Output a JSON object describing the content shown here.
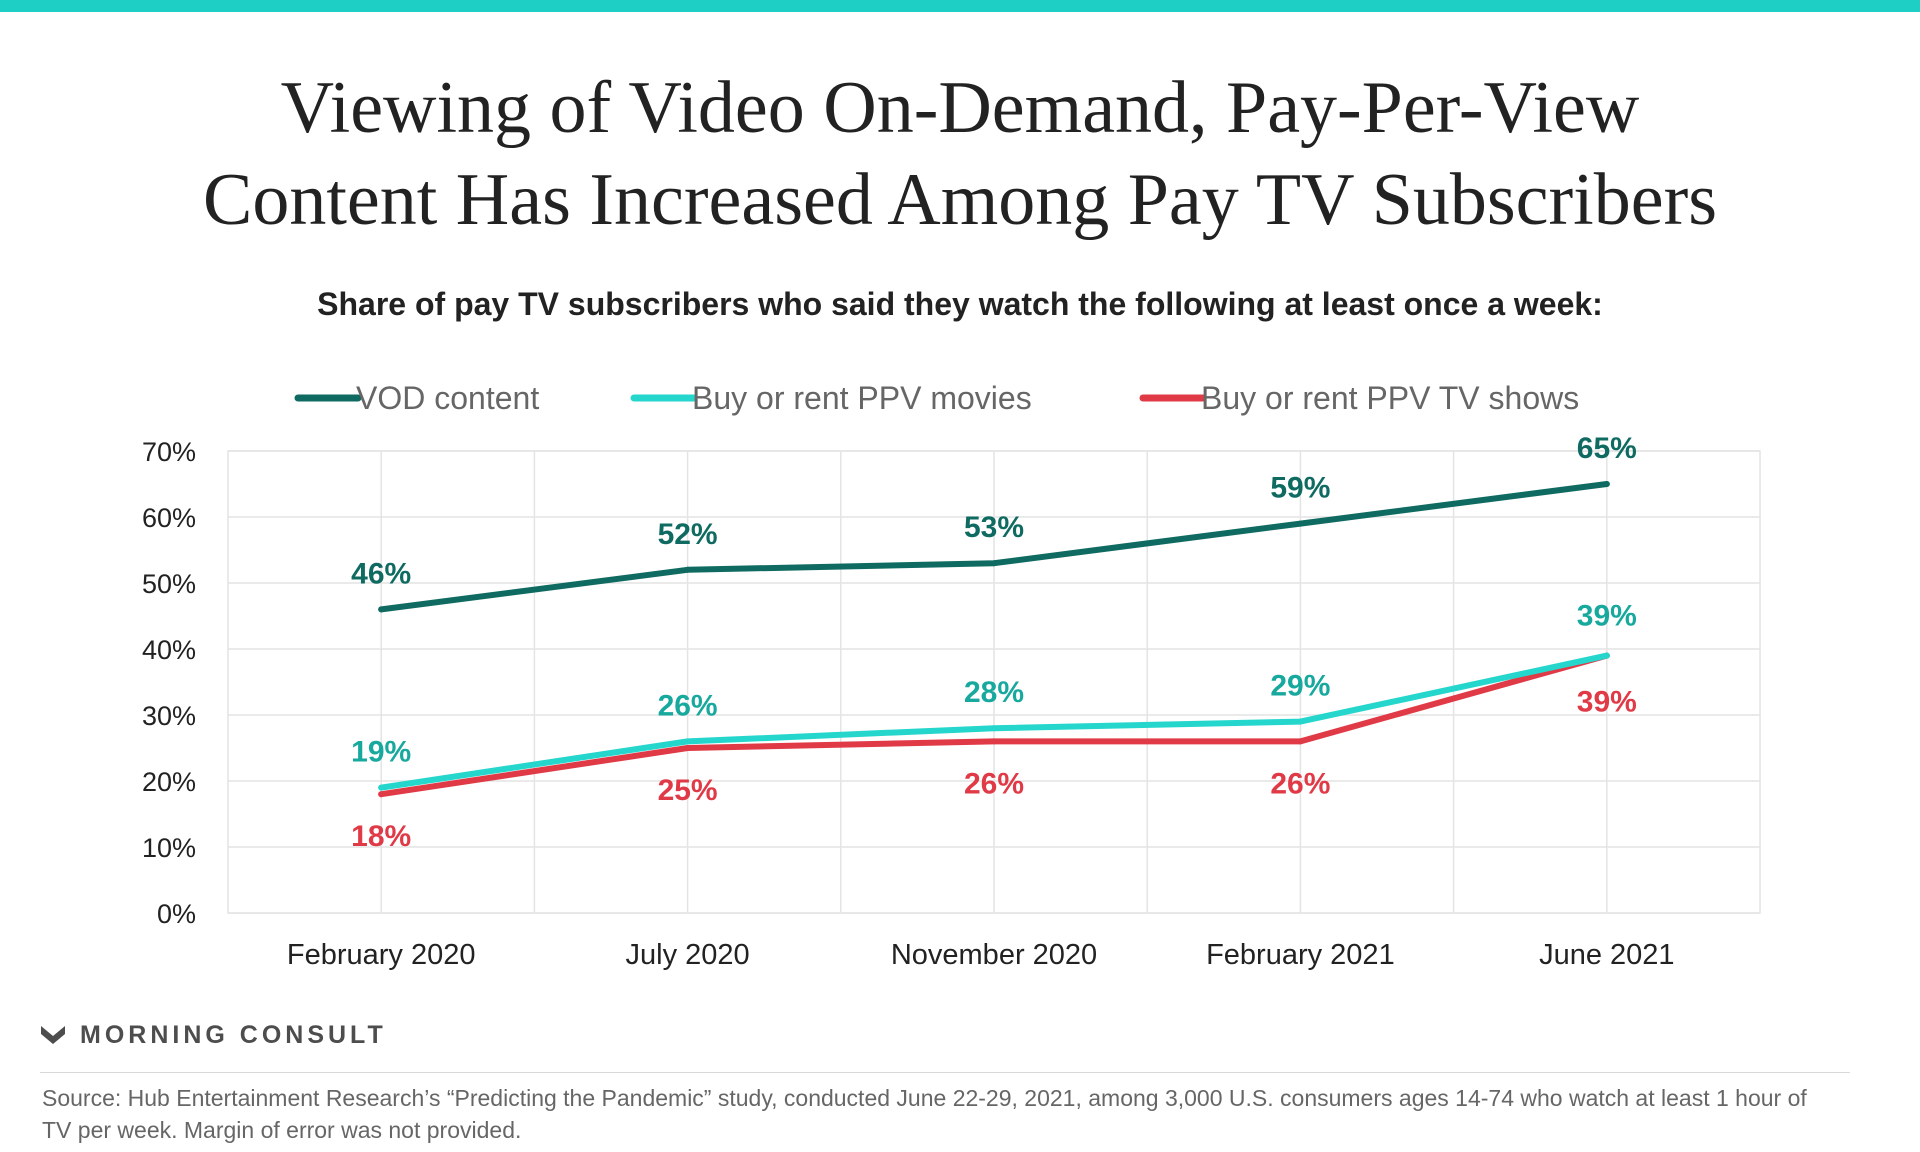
{
  "title_line1": "Viewing of Video On-Demand, Pay-Per-View",
  "title_line2": "Content Has Increased Among Pay TV Subscribers",
  "subtitle": "Share of pay TV subscribers who said they watch the following at least once a week:",
  "brand": "MORNING CONSULT",
  "source": "Source: Hub Entertainment Research’s “Predicting the Pandemic” study, conducted June 22-29, 2021, among 3,000 U.S. consumers ages 14-74 who watch at least 1 hour of TV per week. Margin of error was not provided.",
  "colors": {
    "accent_bar": "#1ecfc5",
    "vod": "#0f6b61",
    "movies": "#25d6cc",
    "movies_label": "#17a89e",
    "tvshows": "#e03a47",
    "grid": "#e4e4e4",
    "text": "#222222"
  },
  "chart_data": {
    "type": "line",
    "categories": [
      "February 2020",
      "July 2020",
      "November 2020",
      "February 2021",
      "June 2021"
    ],
    "series": [
      {
        "name": "VOD content",
        "values": [
          46,
          52,
          53,
          59,
          65
        ]
      },
      {
        "name": "Buy or rent PPV movies",
        "values": [
          19,
          26,
          28,
          29,
          39
        ]
      },
      {
        "name": "Buy or rent PPV TV shows",
        "values": [
          18,
          25,
          26,
          26,
          39
        ]
      }
    ],
    "ylim": [
      0,
      70
    ],
    "yticks": [
      "0%",
      "10%",
      "20%",
      "30%",
      "40%",
      "50%",
      "60%",
      "70%"
    ],
    "value_suffix": "%",
    "legend_position": "top-center",
    "grid": true
  }
}
